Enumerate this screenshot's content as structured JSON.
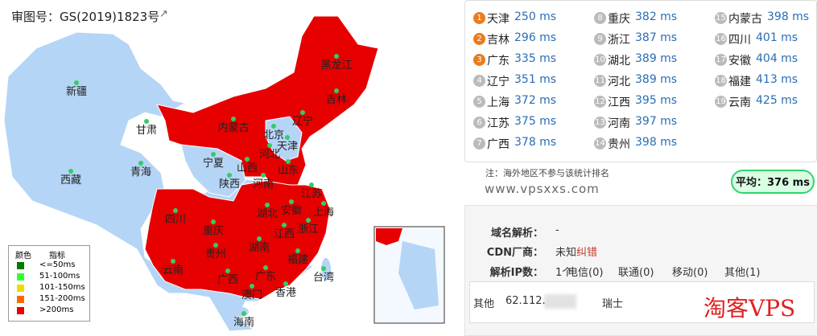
{
  "header": {
    "title": "审图号：GS(2019)1823号"
  },
  "map": {
    "labels": [
      "新疆",
      "西藏",
      "青海",
      "甘肃",
      "内蒙古",
      "黑龙江",
      "吉林",
      "辽宁",
      "北京",
      "天津",
      "河北",
      "山西",
      "宁夏",
      "陕西",
      "山东",
      "河南",
      "四川",
      "重庆",
      "湖北",
      "安徽",
      "江苏",
      "上海",
      "浙江",
      "江西",
      "湖南",
      "贵州",
      "云南",
      "广西",
      "广东",
      "福建",
      "台湾",
      "澳门",
      "香港",
      "海南"
    ]
  },
  "legend": {
    "headers": [
      "颜色",
      "指标"
    ],
    "items": [
      "<=50ms",
      "51-100ms",
      "101-150ms",
      "151-200ms",
      ">200ms"
    ]
  },
  "ranking": [
    {
      "rank": 1,
      "name": "天津",
      "latency": "250 ms"
    },
    {
      "rank": 2,
      "name": "吉林",
      "latency": "296 ms"
    },
    {
      "rank": 3,
      "name": "广东",
      "latency": "335 ms"
    },
    {
      "rank": 4,
      "name": "辽宁",
      "latency": "351 ms"
    },
    {
      "rank": 5,
      "name": "上海",
      "latency": "372 ms"
    },
    {
      "rank": 6,
      "name": "江苏",
      "latency": "375 ms"
    },
    {
      "rank": 7,
      "name": "广西",
      "latency": "378 ms"
    },
    {
      "rank": 8,
      "name": "重庆",
      "latency": "382 ms"
    },
    {
      "rank": 9,
      "name": "浙江",
      "latency": "387 ms"
    },
    {
      "rank": 10,
      "name": "湖北",
      "latency": "389 ms"
    },
    {
      "rank": 11,
      "name": "河北",
      "latency": "389 ms"
    },
    {
      "rank": 12,
      "name": "江西",
      "latency": "395 ms"
    },
    {
      "rank": 13,
      "name": "河南",
      "latency": "397 ms"
    },
    {
      "rank": 14,
      "name": "贵州",
      "latency": "398 ms"
    },
    {
      "rank": 15,
      "name": "内蒙古",
      "latency": "398 ms"
    },
    {
      "rank": 16,
      "name": "四川",
      "latency": "401 ms"
    },
    {
      "rank": 17,
      "name": "安徽",
      "latency": "404 ms"
    },
    {
      "rank": 18,
      "name": "福建",
      "latency": "413 ms"
    },
    {
      "rank": 19,
      "name": "云南",
      "latency": "425 ms"
    }
  ],
  "note": "注：海外地区不参与该统计排名",
  "site": "www.vpsxxs.com",
  "average": "平均：376 ms",
  "dns": {
    "domain_label": "域名解析：",
    "domain_value": "-",
    "cdn_label": "CDN厂商：",
    "cdn_value": "未知",
    "cdn_link": "纠错",
    "ip_label": "解析IP数：",
    "ip_values": [
      "1个",
      "电信(0)",
      "联通(0)",
      "移动(0)",
      "其他(1)"
    ],
    "row": [
      "其他",
      "62.112.",
      "瑞士"
    ]
  },
  "watermark": "淘客VPS"
}
